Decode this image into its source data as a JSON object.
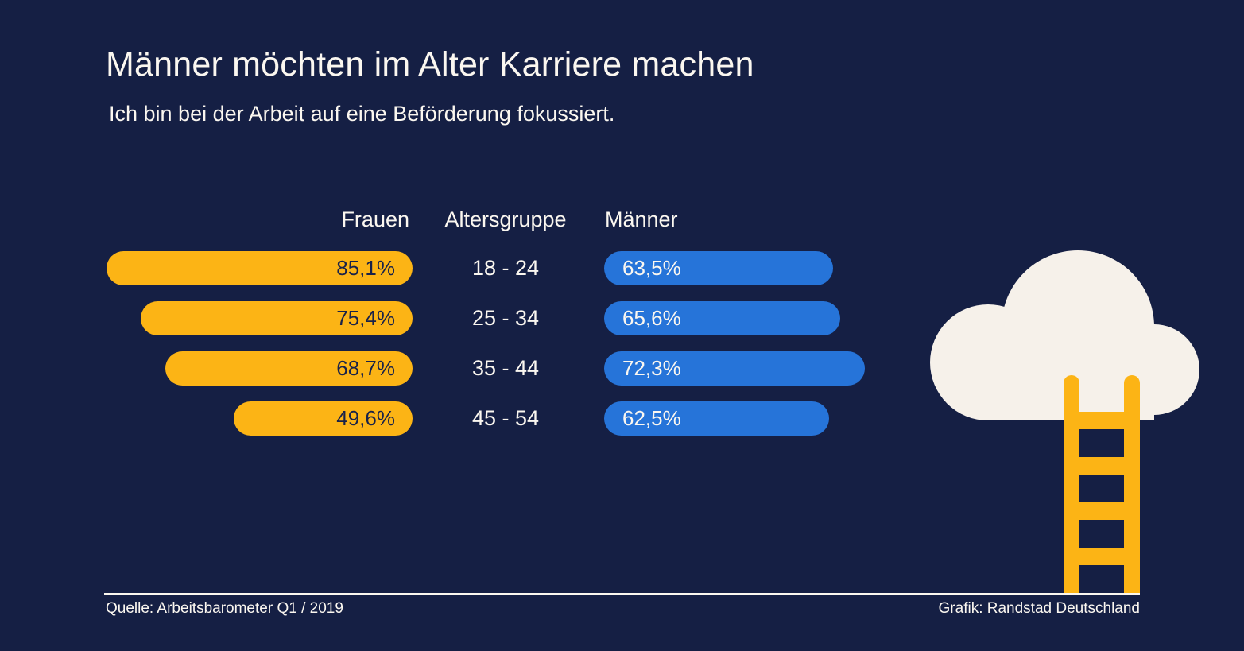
{
  "title": "Männer möchten im Alter Karriere machen",
  "subtitle": "Ich bin bei der Arbeit auf eine Beförderung fokussiert.",
  "columns": {
    "left": "Frauen",
    "center": "Altersgruppe",
    "right": "Männer"
  },
  "chart_data": {
    "type": "bar",
    "orientation": "horizontal",
    "layout": "butterfly",
    "title": "Männer möchten im Alter Karriere machen",
    "subtitle": "Ich bin bei der Arbeit auf eine Beförderung fokussiert.",
    "categories": [
      "18 - 24",
      "25 - 34",
      "35 - 44",
      "45 - 54"
    ],
    "categories_axis_label": "Altersgruppe",
    "unit": "%",
    "xlim": [
      0,
      100
    ],
    "series": [
      {
        "name": "Frauen",
        "values": [
          85.1,
          75.4,
          68.7,
          49.6
        ],
        "labels": [
          "85,1%",
          "75,4%",
          "68,7%",
          "49,6%"
        ],
        "color": "#FCB415",
        "bar_direction": "right-aligned"
      },
      {
        "name": "Männer",
        "values": [
          63.5,
          65.6,
          72.3,
          62.5
        ],
        "labels": [
          "63,5%",
          "65,6%",
          "72,3%",
          "62,5%"
        ],
        "color": "#2674D9",
        "bar_direction": "left-aligned"
      }
    ]
  },
  "footer": {
    "source": "Quelle: Arbeitsbarometer Q1 / 2019",
    "credit": "Grafik: Randstad Deutschland"
  },
  "illustration": "cloud-with-ladder",
  "colors": {
    "background": "#151F44",
    "frauen": "#FCB415",
    "maenner": "#2674D9",
    "cloud": "#F6F1EA",
    "text-light": "#FBF7F0",
    "text-dark": "#18224A"
  }
}
